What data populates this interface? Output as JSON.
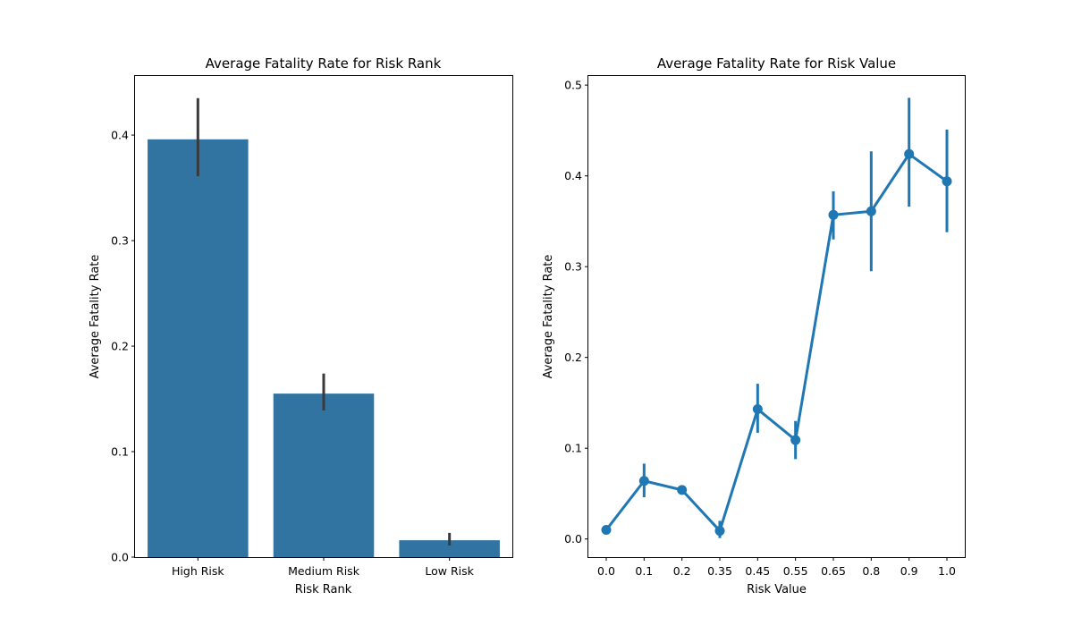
{
  "chart_data": [
    {
      "type": "bar",
      "title": "Average Fatality Rate for Risk Rank",
      "xlabel": "Risk Rank",
      "ylabel": "Average Fatality Rate",
      "categories": [
        "High Risk",
        "Medium Risk",
        "Low Risk"
      ],
      "values": [
        0.396,
        0.155,
        0.016
      ],
      "error_low": [
        0.361,
        0.139,
        0.011
      ],
      "error_high": [
        0.435,
        0.174,
        0.023
      ],
      "ylim": [
        0,
        0.456
      ],
      "yticks": [
        "0.0",
        "0.1",
        "0.2",
        "0.3",
        "0.4"
      ],
      "color": "#3274a1",
      "errorbar_color": "#3a3a3a",
      "grid": false
    },
    {
      "type": "line",
      "title": "Average Fatality Rate for Risk Value",
      "xlabel": "Risk Value",
      "ylabel": "Average Fatality Rate",
      "categories": [
        "0.0",
        "0.1",
        "0.2",
        "0.35",
        "0.45",
        "0.55",
        "0.65",
        "0.8",
        "0.9",
        "1.0"
      ],
      "values": [
        0.01,
        0.064,
        0.054,
        0.009,
        0.143,
        0.109,
        0.357,
        0.361,
        0.424,
        0.394
      ],
      "error_low": [
        0.01,
        0.046,
        0.052,
        0.001,
        0.117,
        0.088,
        0.33,
        0.295,
        0.366,
        0.338
      ],
      "error_high": [
        0.01,
        0.083,
        0.057,
        0.02,
        0.171,
        0.13,
        0.383,
        0.427,
        0.486,
        0.451
      ],
      "ylim": [
        -0.02,
        0.51
      ],
      "yticks": [
        "0.0",
        "0.1",
        "0.2",
        "0.3",
        "0.4",
        "0.5"
      ],
      "color": "#1f77b4",
      "grid": false
    }
  ]
}
